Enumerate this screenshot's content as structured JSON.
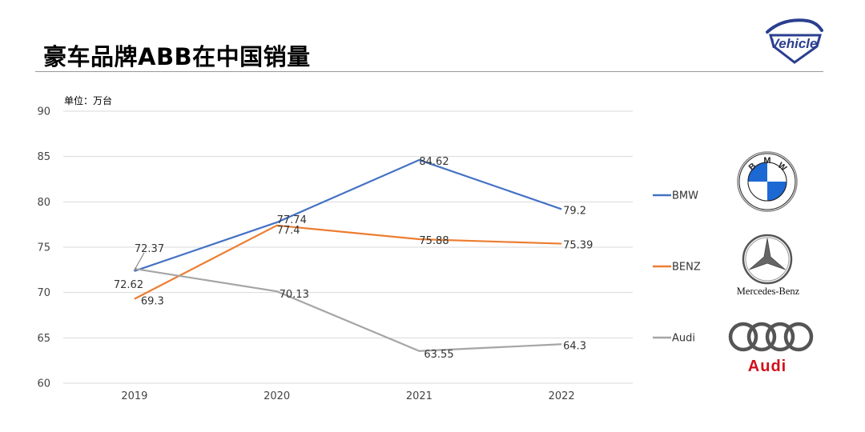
{
  "header": {
    "title": "豪车品牌ABB在中国销量",
    "logo_text": "Vehicle"
  },
  "colors": {
    "BMW": "#4472c4",
    "BENZ": "#ed7d31",
    "Audi": "#a5a5a5",
    "audi_red": "#d0101b",
    "logo_blue": "#2b3f8f",
    "logo_red": "#d0101b"
  },
  "chart_data": {
    "type": "line",
    "unit_label": "单位：万台",
    "categories": [
      "2019",
      "2020",
      "2021",
      "2022"
    ],
    "ylim": [
      60,
      90
    ],
    "yticks": [
      60,
      65,
      70,
      75,
      80,
      85,
      90
    ],
    "grid": true,
    "legend_position": "right",
    "series": [
      {
        "name": "BMW",
        "values": [
          72.37,
          77.74,
          84.62,
          79.2
        ],
        "labels": [
          "72.37",
          "77.74",
          "84.62",
          "79.2"
        ]
      },
      {
        "name": "BENZ",
        "values": [
          69.3,
          77.4,
          75.88,
          75.39
        ],
        "labels": [
          "69.3",
          "77.4",
          "75.88",
          "75.39"
        ]
      },
      {
        "name": "Audi",
        "values": [
          72.62,
          70.13,
          63.55,
          64.3
        ],
        "labels": [
          "72.62",
          "70.13",
          "63.55",
          "64.3"
        ]
      }
    ]
  },
  "brand_logos": {
    "bmw_letters": [
      "B",
      "M",
      "W"
    ],
    "mercedes_text": "Mercedes-Benz",
    "audi_text": "Audi"
  }
}
